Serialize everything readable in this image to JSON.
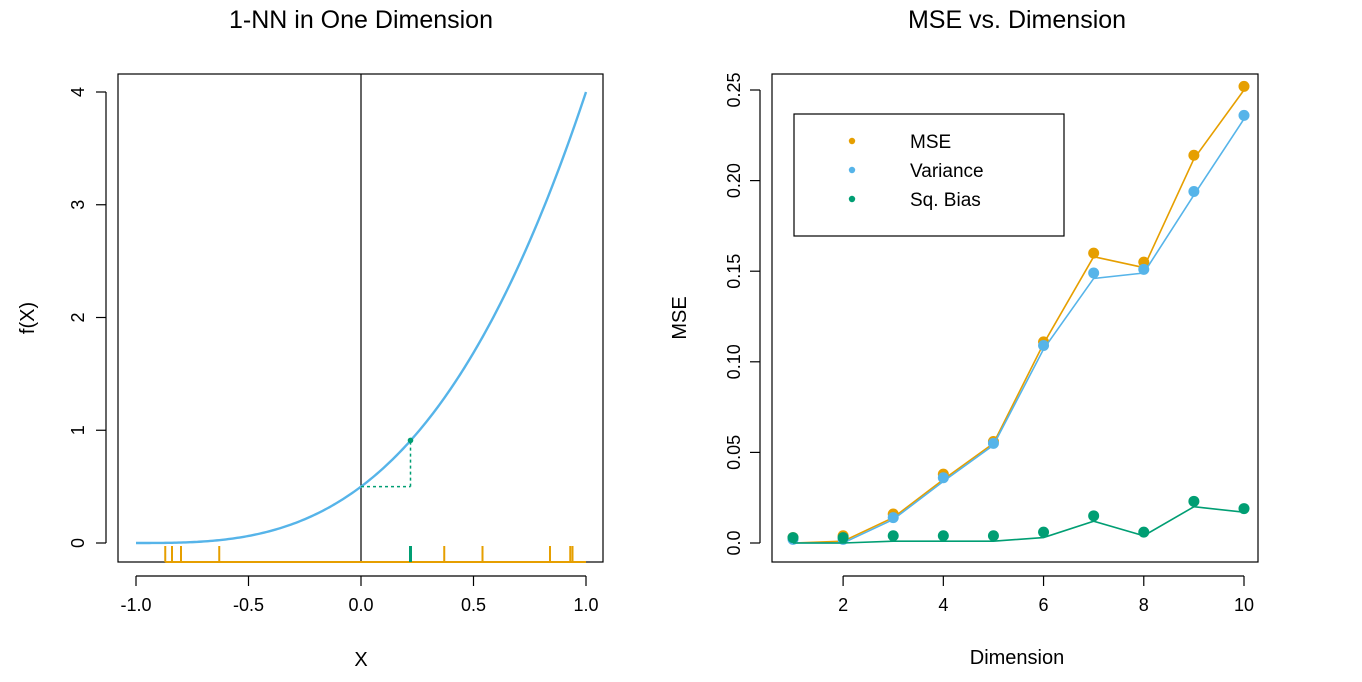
{
  "chart_data": [
    {
      "type": "line",
      "title": "1-NN in One Dimension",
      "xlabel": "X",
      "ylabel": "f(X)",
      "xlim": [
        -1.0,
        1.0
      ],
      "ylim": [
        0,
        4
      ],
      "xticks": [
        "-1.0",
        "-0.5",
        "0.0",
        "0.5",
        "1.0"
      ],
      "yticks": [
        "0",
        "1",
        "2",
        "3",
        "4"
      ],
      "curve": {
        "formula": "f(x) = 0.5*(1+x)^3",
        "x_range": [
          -1.0,
          1.0
        ],
        "color": "#56b4e9"
      },
      "vertical_line_x": 0.0,
      "target_point": {
        "x": 0.0,
        "y": 0.5
      },
      "nearest_neighbor": {
        "x": 0.22,
        "y": 0.91,
        "color": "#009e73"
      },
      "rug_points": [
        -0.87,
        -0.84,
        -0.8,
        -0.63,
        0.37,
        0.54,
        0.84,
        0.93,
        0.94
      ],
      "rug_color": "#e69f00"
    },
    {
      "type": "line",
      "title": "MSE  vs. Dimension",
      "xlabel": "Dimension",
      "ylabel": "MSE",
      "xlim": [
        1,
        10
      ],
      "ylim": [
        0,
        0.25
      ],
      "xticks": [
        "2",
        "4",
        "6",
        "8",
        "10"
      ],
      "yticks": [
        "0.0",
        "0.05",
        "0.10",
        "0.15",
        "0.20",
        "0.25"
      ],
      "x": [
        1,
        2,
        3,
        4,
        5,
        6,
        7,
        8,
        9,
        10
      ],
      "series": [
        {
          "name": "MSE",
          "color": "#e69f00",
          "points": [
            0.003,
            0.004,
            0.016,
            0.038,
            0.056,
            0.111,
            0.16,
            0.155,
            0.214,
            0.252
          ],
          "line": [
            0.0,
            0.001,
            0.014,
            0.035,
            0.055,
            0.11,
            0.158,
            0.152,
            0.212,
            0.25
          ]
        },
        {
          "name": "Variance",
          "color": "#56b4e9",
          "points": [
            0.002,
            0.002,
            0.014,
            0.036,
            0.055,
            0.109,
            0.149,
            0.151,
            0.194,
            0.236
          ],
          "line": [
            0.0,
            0.0,
            0.013,
            0.034,
            0.054,
            0.107,
            0.146,
            0.149,
            0.192,
            0.234
          ]
        },
        {
          "name": "Sq. Bias",
          "color": "#009e73",
          "points": [
            0.003,
            0.003,
            0.004,
            0.004,
            0.004,
            0.006,
            0.015,
            0.006,
            0.023,
            0.019
          ],
          "line": [
            0.0,
            0.0,
            0.001,
            0.001,
            0.001,
            0.003,
            0.012,
            0.004,
            0.02,
            0.017
          ]
        }
      ],
      "legend_position": "top-left"
    }
  ]
}
